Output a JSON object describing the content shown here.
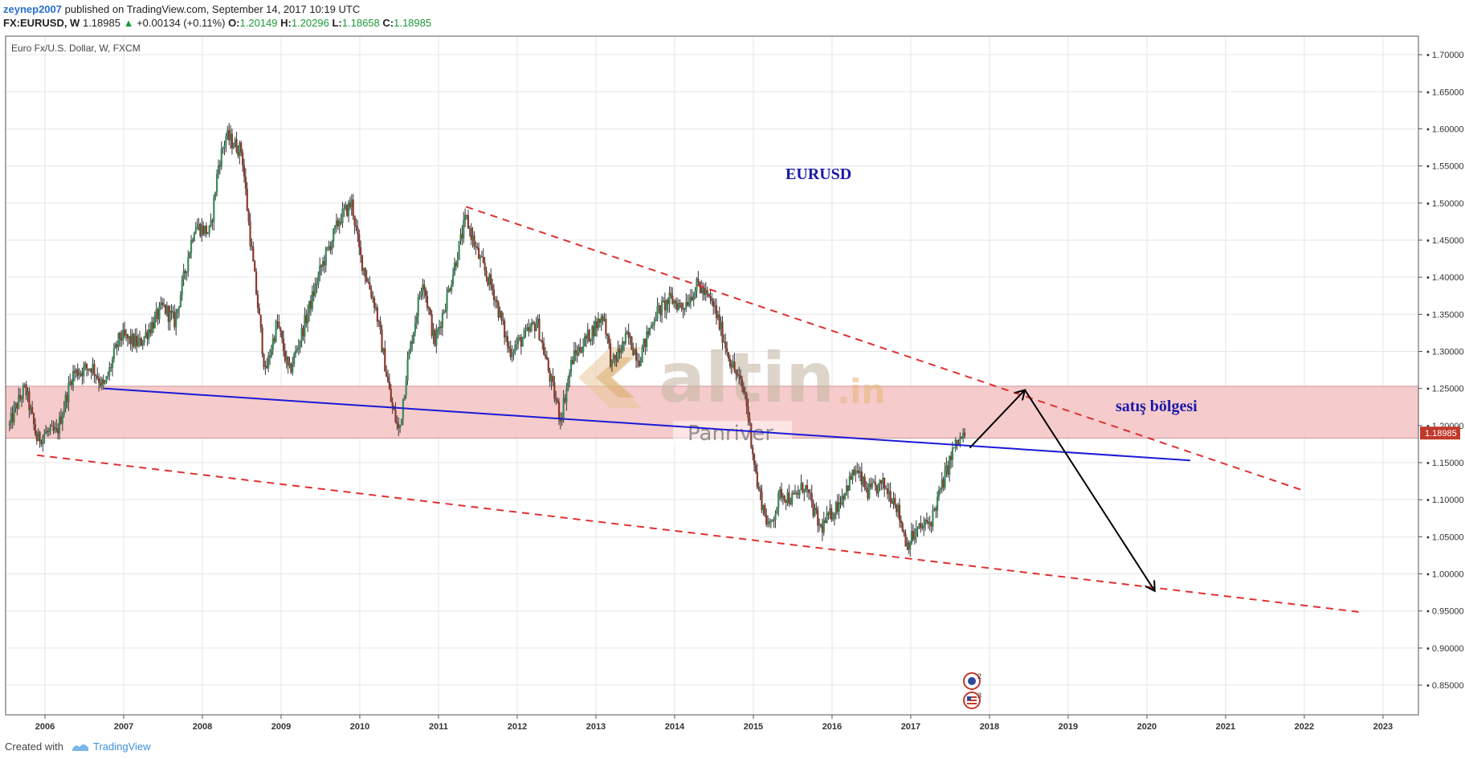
{
  "header": {
    "user": "zeynep2007",
    "published": " published on TradingView.com, September 14, 2017 10:19 UTC",
    "symbol": "FX:EURUSD, W",
    "last": "1.18985",
    "change_arrow": "▲",
    "change": "+0.00134 (+0.11%)",
    "o_label": "O:",
    "o_value": "1.20149",
    "h_label": "H:",
    "h_value": "1.20296",
    "l_label": "L:",
    "l_value": "1.18658",
    "c_label": "C:",
    "c_value": "1.18985"
  },
  "footer": {
    "created": "Created with",
    "brand": "TradingView"
  },
  "colors": {
    "up_candle": "#3a8a5c",
    "down_candle": "#8b3a2e",
    "zone_fill": "#f4c2c2",
    "support_line": "#1a1ad6",
    "dashed_line": "#e03030",
    "price_tag": "#c0392b",
    "annotation_text": "#1a1aaa",
    "watermark": "#c8b8a8"
  },
  "chart_data": {
    "type": "candlestick",
    "title": "Euro Fx/U.S. Dollar, W, FXCM",
    "x_ticks": [
      "2006",
      "2007",
      "2008",
      "2009",
      "2010",
      "2011",
      "2012",
      "2013",
      "2014",
      "2015",
      "2016",
      "2017",
      "2018",
      "2019",
      "2020",
      "2021",
      "2022",
      "2023"
    ],
    "y_ticks": [
      "0.85000",
      "0.90000",
      "0.95000",
      "1.00000",
      "1.05000",
      "1.10000",
      "1.15000",
      "1.20000",
      "1.25000",
      "1.30000",
      "1.35000",
      "1.40000",
      "1.45000",
      "1.50000",
      "1.55000",
      "1.60000",
      "1.65000",
      "1.70000"
    ],
    "ylim": [
      0.81,
      1.725
    ],
    "xlim": [
      2005.5,
      2023.45
    ],
    "last_price": "1.18985",
    "approx_close_path": [
      {
        "t": 2005.55,
        "p": 1.2
      },
      {
        "t": 2005.65,
        "p": 1.23
      },
      {
        "t": 2005.75,
        "p": 1.25
      },
      {
        "t": 2005.9,
        "p": 1.18
      },
      {
        "t": 2006.0,
        "p": 1.19
      },
      {
        "t": 2006.15,
        "p": 1.19
      },
      {
        "t": 2006.35,
        "p": 1.27
      },
      {
        "t": 2006.6,
        "p": 1.28
      },
      {
        "t": 2006.75,
        "p": 1.25
      },
      {
        "t": 2006.95,
        "p": 1.32
      },
      {
        "t": 2007.2,
        "p": 1.31
      },
      {
        "t": 2007.5,
        "p": 1.36
      },
      {
        "t": 2007.65,
        "p": 1.34
      },
      {
        "t": 2007.9,
        "p": 1.47
      },
      {
        "t": 2008.1,
        "p": 1.46
      },
      {
        "t": 2008.2,
        "p": 1.55
      },
      {
        "t": 2008.3,
        "p": 1.59
      },
      {
        "t": 2008.5,
        "p": 1.57
      },
      {
        "t": 2008.6,
        "p": 1.46
      },
      {
        "t": 2008.8,
        "p": 1.27
      },
      {
        "t": 2008.95,
        "p": 1.34
      },
      {
        "t": 2009.1,
        "p": 1.27
      },
      {
        "t": 2009.25,
        "p": 1.32
      },
      {
        "t": 2009.5,
        "p": 1.41
      },
      {
        "t": 2009.75,
        "p": 1.48
      },
      {
        "t": 2009.9,
        "p": 1.5
      },
      {
        "t": 2010.0,
        "p": 1.43
      },
      {
        "t": 2010.2,
        "p": 1.36
      },
      {
        "t": 2010.4,
        "p": 1.23
      },
      {
        "t": 2010.5,
        "p": 1.19
      },
      {
        "t": 2010.6,
        "p": 1.28
      },
      {
        "t": 2010.8,
        "p": 1.4
      },
      {
        "t": 2010.95,
        "p": 1.31
      },
      {
        "t": 2011.1,
        "p": 1.37
      },
      {
        "t": 2011.35,
        "p": 1.48
      },
      {
        "t": 2011.5,
        "p": 1.43
      },
      {
        "t": 2011.7,
        "p": 1.38
      },
      {
        "t": 2011.9,
        "p": 1.3
      },
      {
        "t": 2012.1,
        "p": 1.32
      },
      {
        "t": 2012.25,
        "p": 1.34
      },
      {
        "t": 2012.45,
        "p": 1.25
      },
      {
        "t": 2012.55,
        "p": 1.21
      },
      {
        "t": 2012.7,
        "p": 1.29
      },
      {
        "t": 2012.9,
        "p": 1.32
      },
      {
        "t": 2013.1,
        "p": 1.35
      },
      {
        "t": 2013.2,
        "p": 1.28
      },
      {
        "t": 2013.4,
        "p": 1.32
      },
      {
        "t": 2013.55,
        "p": 1.29
      },
      {
        "t": 2013.75,
        "p": 1.35
      },
      {
        "t": 2013.95,
        "p": 1.37
      },
      {
        "t": 2014.1,
        "p": 1.36
      },
      {
        "t": 2014.3,
        "p": 1.39
      },
      {
        "t": 2014.5,
        "p": 1.36
      },
      {
        "t": 2014.7,
        "p": 1.29
      },
      {
        "t": 2014.9,
        "p": 1.24
      },
      {
        "t": 2015.05,
        "p": 1.12
      },
      {
        "t": 2015.2,
        "p": 1.06
      },
      {
        "t": 2015.35,
        "p": 1.11
      },
      {
        "t": 2015.5,
        "p": 1.1
      },
      {
        "t": 2015.65,
        "p": 1.12
      },
      {
        "t": 2015.85,
        "p": 1.06
      },
      {
        "t": 2016.05,
        "p": 1.09
      },
      {
        "t": 2016.3,
        "p": 1.14
      },
      {
        "t": 2016.45,
        "p": 1.11
      },
      {
        "t": 2016.65,
        "p": 1.12
      },
      {
        "t": 2016.8,
        "p": 1.1
      },
      {
        "t": 2016.95,
        "p": 1.04
      },
      {
        "t": 2017.1,
        "p": 1.06
      },
      {
        "t": 2017.25,
        "p": 1.07
      },
      {
        "t": 2017.4,
        "p": 1.12
      },
      {
        "t": 2017.55,
        "p": 1.17
      },
      {
        "t": 2017.7,
        "p": 1.19
      }
    ],
    "annotations": {
      "eurusd_label": "EURUSD",
      "zone_label": "satış bölgesi",
      "watermark_main": "altin",
      "watermark_sub": ".in",
      "watermark_brand": "Panriver",
      "event_badge_1": "2",
      "event_badge_2": "3"
    },
    "sell_zone": {
      "low": 1.183,
      "high": 1.253
    },
    "upper_trendline": [
      {
        "t": 2011.35,
        "p": 1.495
      },
      {
        "t": 2022.0,
        "p": 1.112
      }
    ],
    "support_line": [
      {
        "t": 2006.75,
        "p": 1.25
      },
      {
        "t": 2020.55,
        "p": 1.153
      }
    ],
    "lower_trendline": [
      {
        "t": 2005.9,
        "p": 1.16
      },
      {
        "t": 2022.75,
        "p": 0.948
      }
    ],
    "projection_arrows": [
      {
        "from": {
          "t": 2017.75,
          "p": 1.17
        },
        "to": {
          "t": 2018.45,
          "p": 1.248
        }
      },
      {
        "from": {
          "t": 2018.45,
          "p": 1.248
        },
        "to": {
          "t": 2020.1,
          "p": 0.977
        }
      }
    ]
  }
}
